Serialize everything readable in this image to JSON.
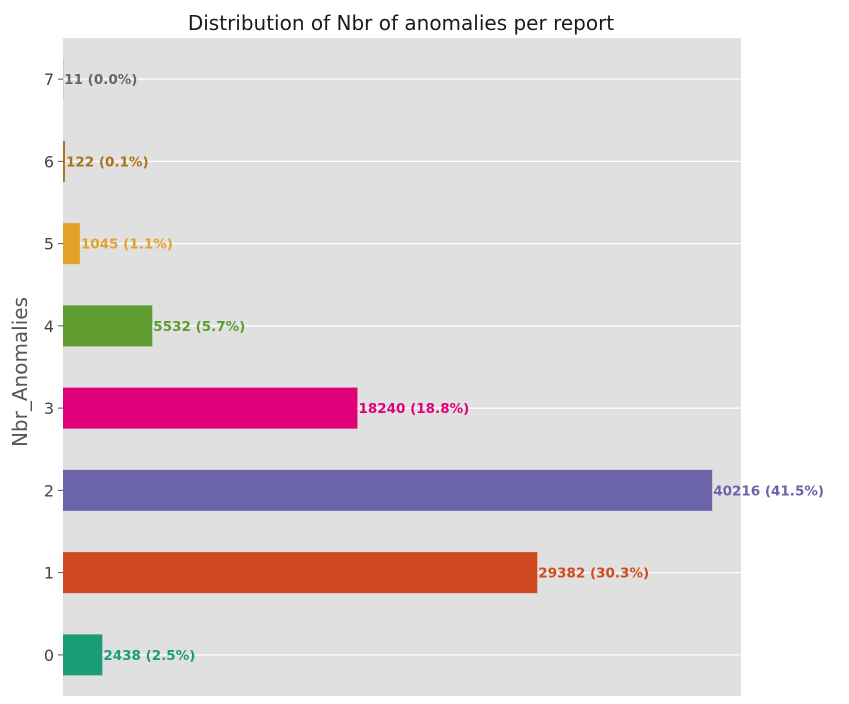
{
  "chart_data": {
    "type": "bar",
    "orientation": "horizontal",
    "title": "Distribution of Nbr of anomalies per report",
    "xlabel": "",
    "ylabel": "Nbr_Anomalies",
    "categories": [
      "0",
      "1",
      "2",
      "3",
      "4",
      "5",
      "6",
      "7"
    ],
    "values": [
      2438,
      29382,
      40216,
      18240,
      5532,
      1045,
      122,
      11
    ],
    "value_labels": [
      "2438  (2.5%)",
      "29382  (30.3%)",
      "40216  (41.5%)",
      "18240  (18.8%)",
      "5532  (5.7%)",
      "1045  (1.1%)",
      "122  (0.1%)",
      "11  (0.0%)"
    ],
    "colors": [
      "#1b9e77",
      "#d04a21",
      "#6c64a8",
      "#e0007a",
      "#5f9c2f",
      "#e4a22a",
      "#a8731a",
      "#666666"
    ],
    "xlim": [
      0,
      42000
    ],
    "grid": true,
    "x_ticks_visible": false,
    "legend": "none",
    "background": "#e0e0e0"
  }
}
